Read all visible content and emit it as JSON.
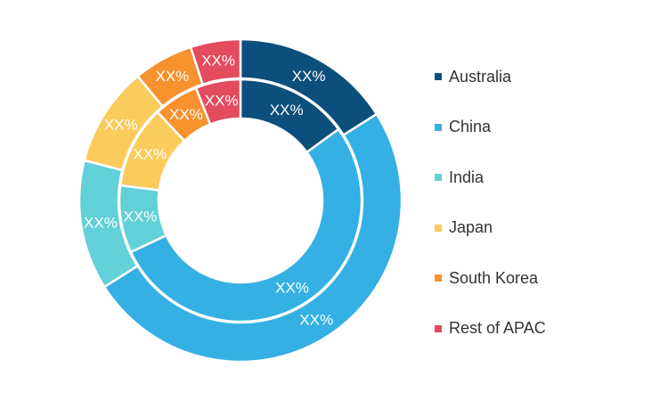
{
  "chart_data": {
    "type": "pie",
    "style": "nested-donut",
    "categories": [
      "Australia",
      "China",
      "India",
      "Japan",
      "South Korea",
      "Rest of APAC"
    ],
    "colors": [
      "#0d4f7c",
      "#35b0e4",
      "#62d0d8",
      "#fbcb5c",
      "#f7922f",
      "#e34b5e"
    ],
    "series": [
      {
        "ring": "outer",
        "values": [
          16,
          50,
          13,
          10,
          6,
          5
        ],
        "labels": [
          "XX%",
          "XX%",
          "XX%",
          "XX%",
          "XX%",
          "XX%"
        ]
      },
      {
        "ring": "inner",
        "values": [
          15,
          53,
          9,
          11,
          6,
          6
        ],
        "labels": [
          "XX%",
          "XX%",
          "XX%",
          "XX%",
          "XX%",
          "XX%"
        ]
      }
    ],
    "legend": {
      "position": "right",
      "entries": [
        "Australia",
        "China",
        "India",
        "Japan",
        "South Korea",
        "Rest of APAC"
      ]
    }
  }
}
